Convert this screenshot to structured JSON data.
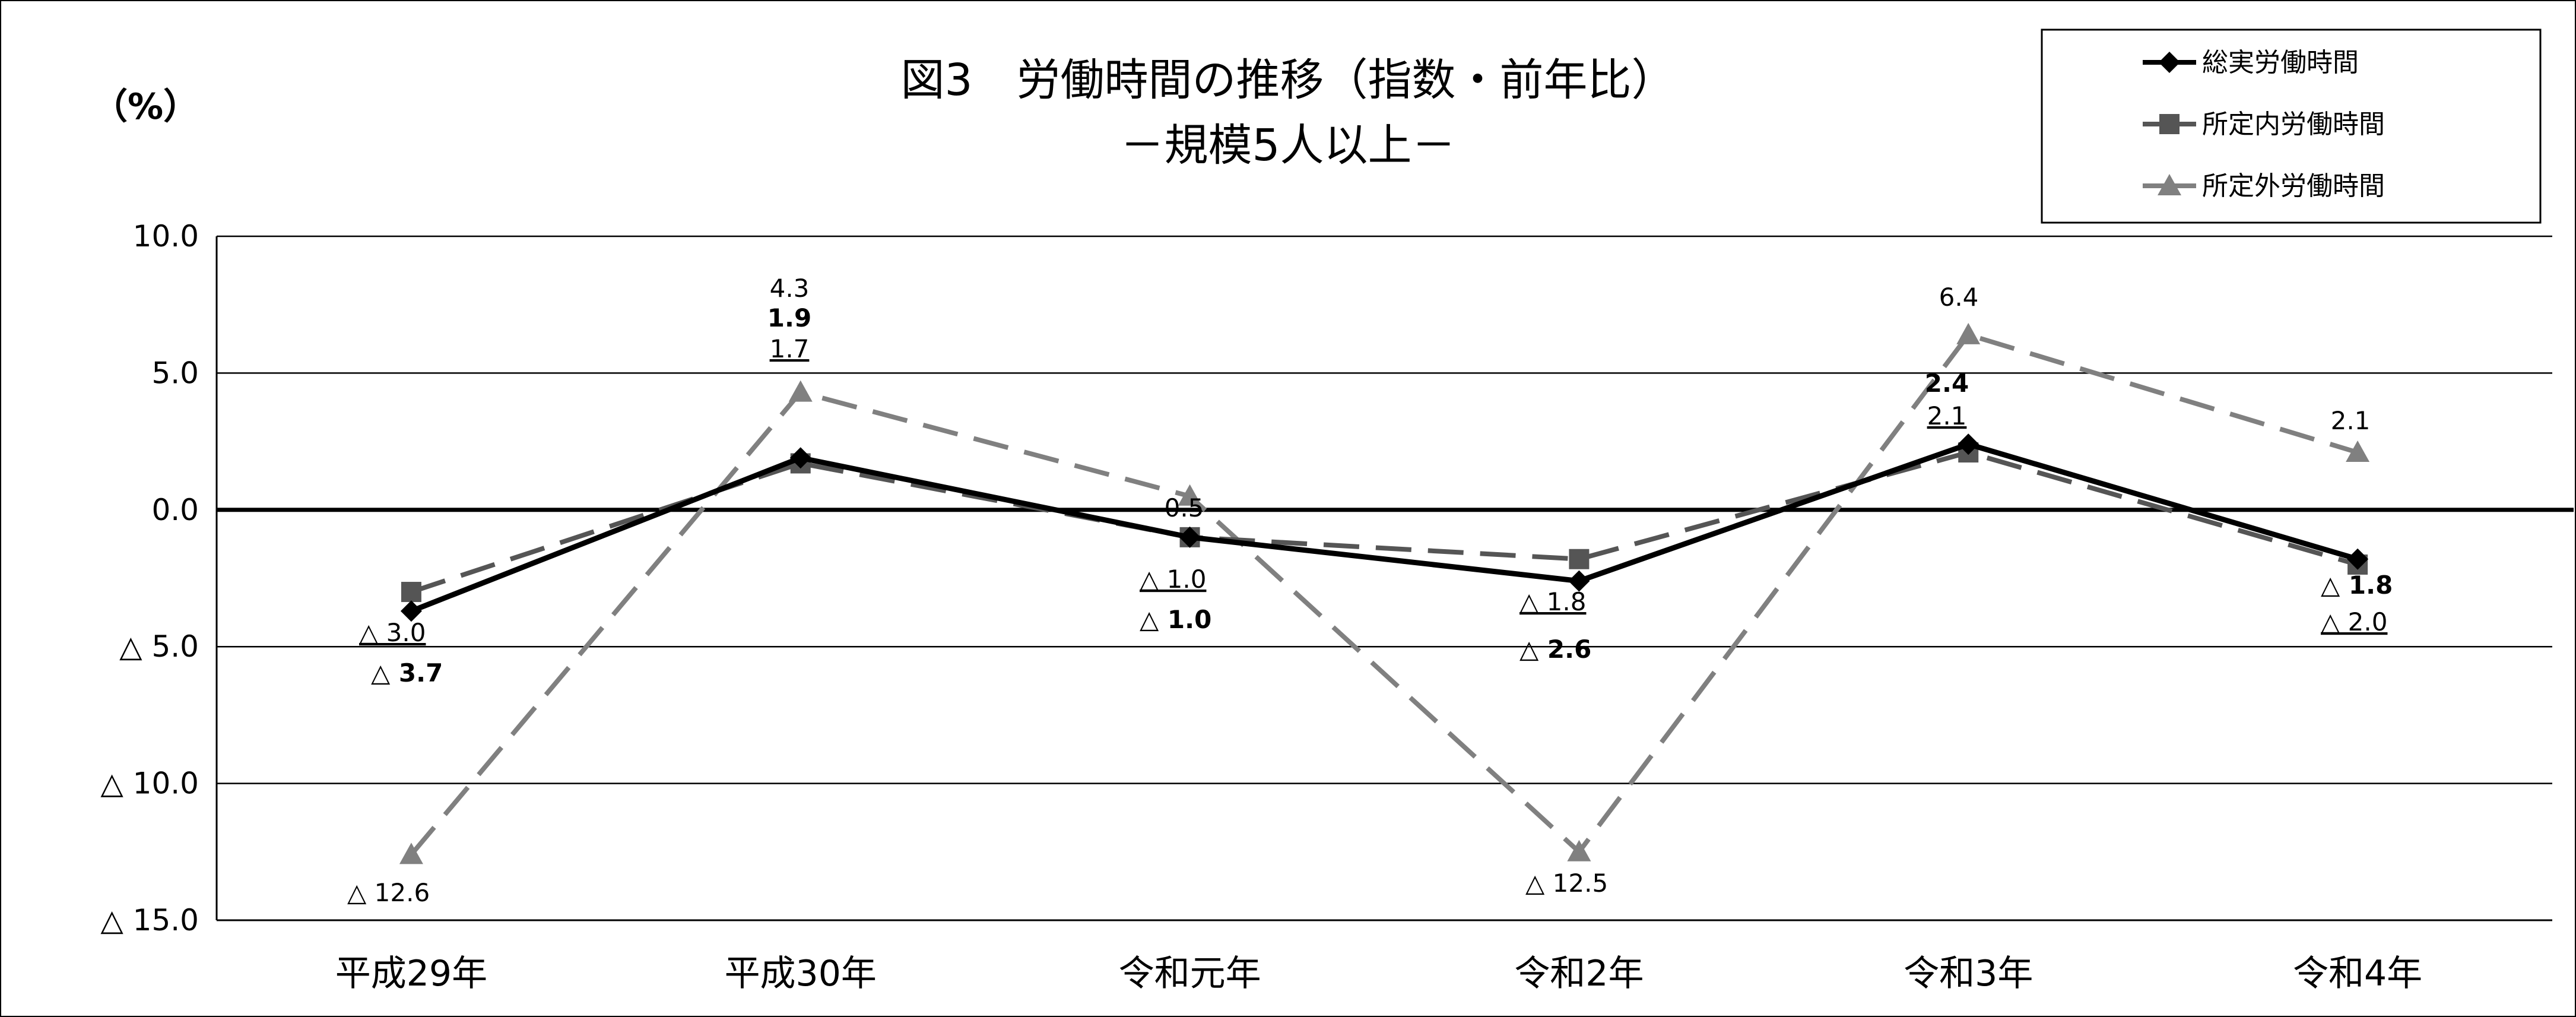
{
  "chart_data": {
    "type": "line",
    "title": "図3　労働時間の推移（指数・前年比）",
    "subtitle": "－規模5人以上－",
    "unit_label": "（%）",
    "categories": [
      "平成29年",
      "平成30年",
      "令和元年",
      "令和2年",
      "令和3年",
      "令和4年"
    ],
    "ylim": [
      -15,
      10
    ],
    "yticks": [
      {
        "value": 10,
        "label": "10.0"
      },
      {
        "value": 5,
        "label": "5.0"
      },
      {
        "value": 0,
        "label": "0.0"
      },
      {
        "value": -5,
        "label": "△ 5.0"
      },
      {
        "value": -10,
        "label": "△ 10.0"
      },
      {
        "value": -15,
        "label": "△ 15.0"
      }
    ],
    "grid": true,
    "legend_position": "top-right",
    "series": [
      {
        "name": "総実労働時間",
        "color": "#000000",
        "marker": "diamond",
        "dash": "solid",
        "values": [
          -3.7,
          1.9,
          -1.0,
          -2.6,
          2.4,
          -1.8
        ],
        "labels": [
          "△ 3.7",
          "1.9",
          "△ 1.0",
          "△ 2.6",
          "2.4",
          "△ 1.8"
        ]
      },
      {
        "name": "所定内労働時間",
        "color": "#555555",
        "marker": "square",
        "dash": "long-dash",
        "values": [
          -3.0,
          1.7,
          -1.0,
          -1.8,
          2.1,
          -2.0
        ],
        "labels": [
          "△ 3.0",
          "1.7",
          "△ 1.0",
          "△ 1.8",
          "2.1",
          "△ 2.0"
        ]
      },
      {
        "name": "所定外労働時間",
        "color": "#808080",
        "marker": "triangle",
        "dash": "long-dash",
        "values": [
          -12.6,
          4.3,
          0.5,
          -12.5,
          6.4,
          2.1
        ],
        "labels": [
          "△ 12.6",
          "4.3",
          "0.5",
          "△ 12.5",
          "6.4",
          "2.1"
        ]
      }
    ]
  }
}
